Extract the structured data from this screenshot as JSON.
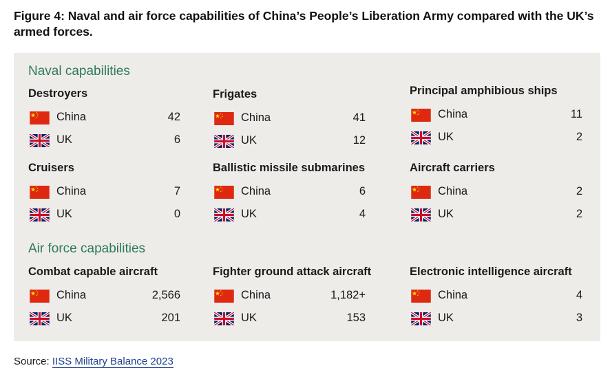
{
  "title": "Figure 4: Naval and air force capabilities of China’s People’s Liberation Army compared with the UK’s armed forces.",
  "source": {
    "label": "Source:",
    "link_text": "IISS Military Balance 2023"
  },
  "colors": {
    "panel_bg": "#eeece9",
    "section_title": "#2e7a5c",
    "china_red": "#de2910",
    "china_star": "#ffde00",
    "uk_blue": "#012169",
    "uk_red": "#c8102e"
  },
  "chart_data": {
    "type": "table",
    "title": "Naval and air force capabilities of China’s People’s Liberation Army compared with the UK’s armed forces",
    "countries": [
      "China",
      "UK"
    ],
    "sections": [
      {
        "title": "Naval capabilities",
        "categories": [
          {
            "name": "Destroyers",
            "rows": [
              {
                "country": "China",
                "value": "42"
              },
              {
                "country": "UK",
                "value": "6"
              }
            ]
          },
          {
            "name": "Frigates",
            "rows": [
              {
                "country": "China",
                "value": "41"
              },
              {
                "country": "UK",
                "value": "12"
              }
            ]
          },
          {
            "name": "Principal amphibious ships",
            "rows": [
              {
                "country": "China",
                "value": "11"
              },
              {
                "country": "UK",
                "value": "2"
              }
            ]
          },
          {
            "name": "Cruisers",
            "rows": [
              {
                "country": "China",
                "value": "7"
              },
              {
                "country": "UK",
                "value": "0"
              }
            ]
          },
          {
            "name": "Ballistic missile submarines",
            "rows": [
              {
                "country": "China",
                "value": "6"
              },
              {
                "country": "UK",
                "value": "4"
              }
            ]
          },
          {
            "name": "Aircraft carriers",
            "rows": [
              {
                "country": "China",
                "value": "2"
              },
              {
                "country": "UK",
                "value": "2"
              }
            ]
          }
        ]
      },
      {
        "title": "Air force capabilities",
        "categories": [
          {
            "name": "Combat capable aircraft",
            "rows": [
              {
                "country": "China",
                "value": "2,566"
              },
              {
                "country": "UK",
                "value": "201"
              }
            ]
          },
          {
            "name": "Fighter ground attack aircraft",
            "rows": [
              {
                "country": "China",
                "value": "1,182+"
              },
              {
                "country": "UK",
                "value": "153"
              }
            ]
          },
          {
            "name": "Electronic intelligence aircraft",
            "rows": [
              {
                "country": "China",
                "value": "4"
              },
              {
                "country": "UK",
                "value": "3"
              }
            ]
          }
        ]
      }
    ]
  }
}
